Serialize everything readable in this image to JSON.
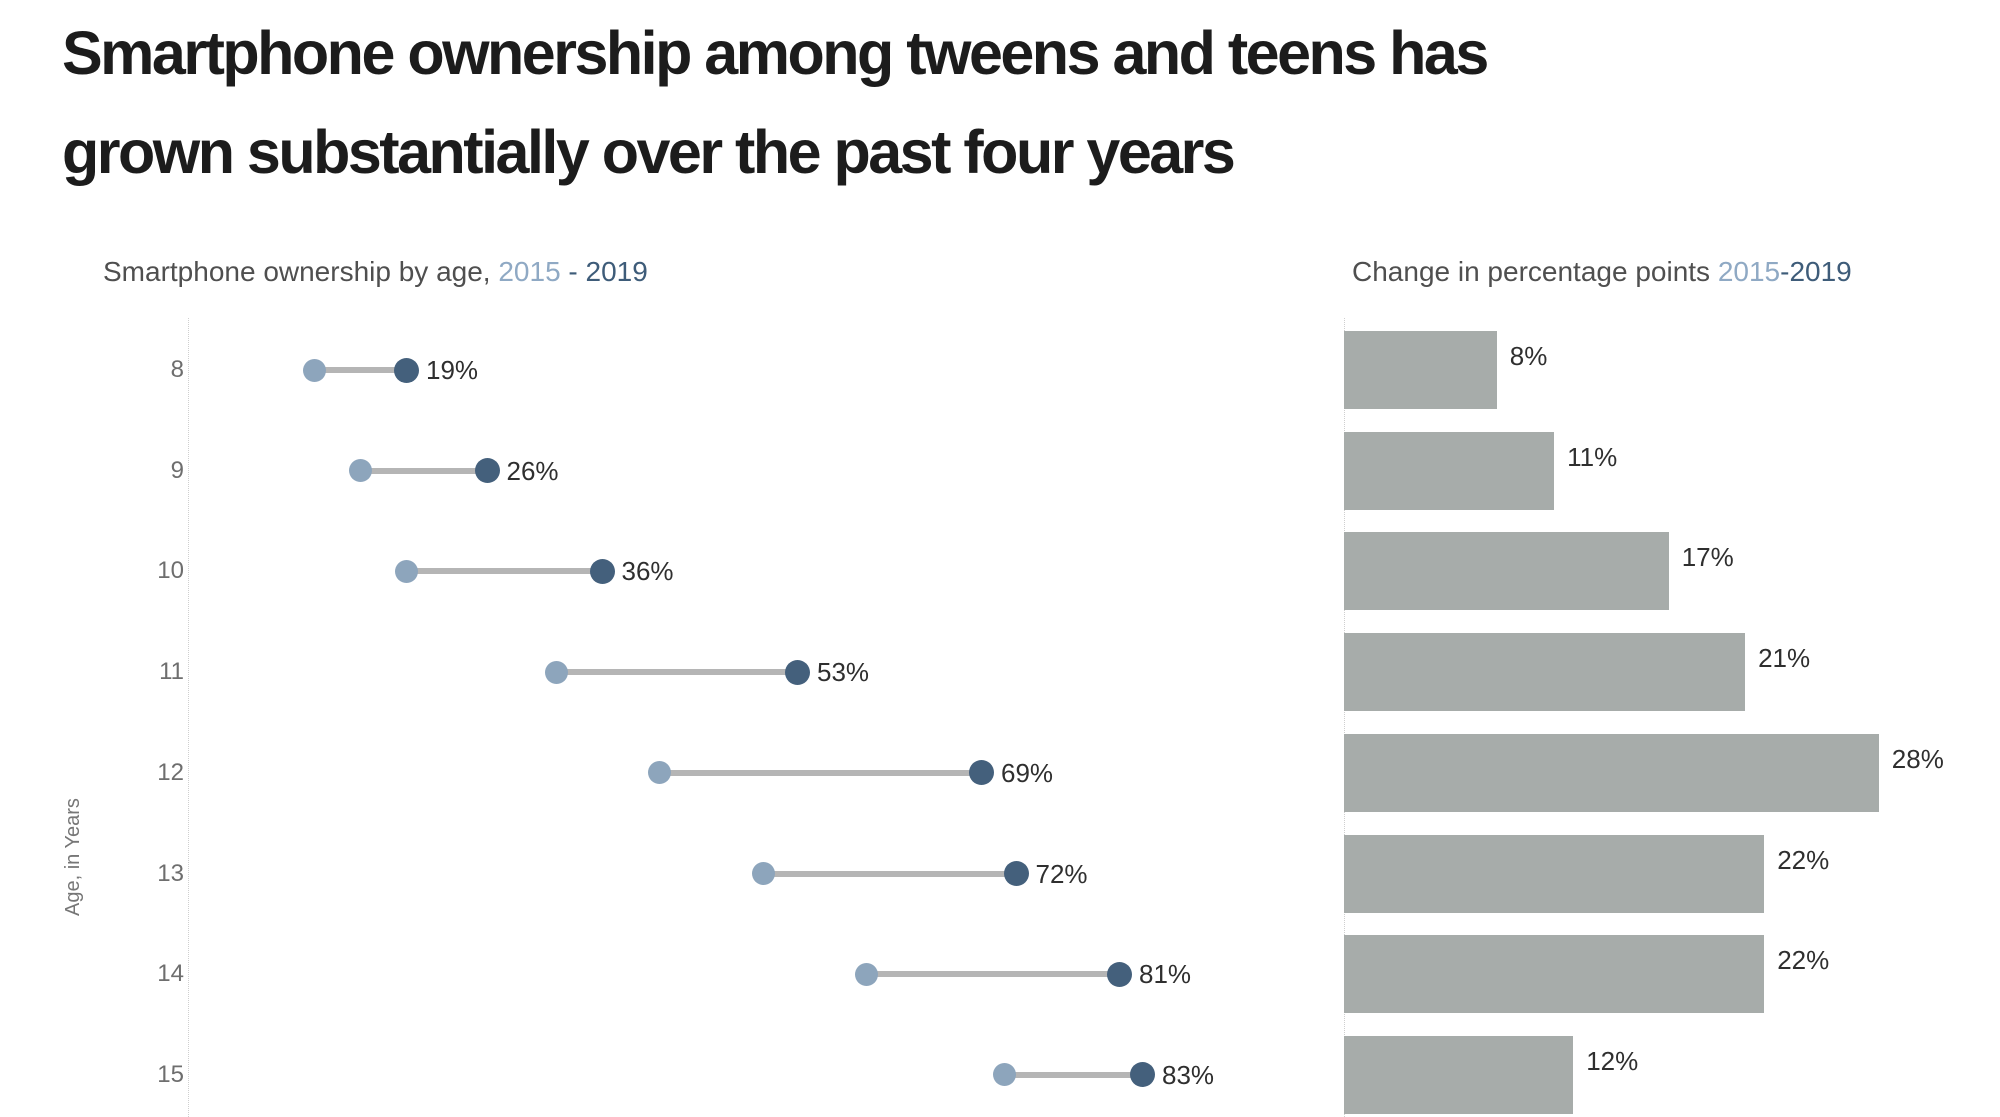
{
  "title": {
    "line1": "Smartphone ownership among tweens and teens has",
    "line2": "grown substantially over the past four years"
  },
  "left_chart": {
    "subtitle_prefix": "Smartphone ownership by age, ",
    "subtitle_year_start": "2015",
    "subtitle_year_rest": " - 2019",
    "y_axis_label": "Age, in Years"
  },
  "right_chart": {
    "subtitle_prefix": "Change in percentage points ",
    "subtitle_year_start": "2015",
    "subtitle_year_rest": "-2019"
  },
  "colors": {
    "year2015_blue": "#8DA5BC",
    "year2019_blue": "#44607C",
    "connector_gray": "#B5B5B5",
    "bar_gray": "#A7ACAA",
    "subtitle_2015_text": "#8FA9C4",
    "subtitle_2019_text": "#3E5C79"
  },
  "chart_data": [
    {
      "type": "scatter",
      "subtype": "dumbbell",
      "title": "Smartphone ownership by age, 2015 - 2019",
      "xlabel": "",
      "ylabel": "Age, in Years",
      "categories": [
        "8",
        "9",
        "10",
        "11",
        "12",
        "13",
        "14",
        "15"
      ],
      "series": [
        {
          "name": "2015",
          "values": [
            11,
            15,
            19,
            32,
            41,
            50,
            59,
            71
          ]
        },
        {
          "name": "2019",
          "values": [
            19,
            26,
            36,
            53,
            69,
            72,
            81,
            83
          ]
        }
      ],
      "labels": [
        "19%",
        "26%",
        "36%",
        "53%",
        "69%",
        "72%",
        "81%",
        "83%"
      ],
      "xlim": [
        0,
        100
      ],
      "grid": false,
      "legend": "none",
      "orientation": "horizontal"
    },
    {
      "type": "bar",
      "title": "Change in percentage points 2015-2019",
      "xlabel": "",
      "ylabel": "",
      "categories": [
        "8",
        "9",
        "10",
        "11",
        "12",
        "13",
        "14",
        "15"
      ],
      "values": [
        8,
        11,
        17,
        21,
        28,
        22,
        22,
        12
      ],
      "labels": [
        "8%",
        "11%",
        "17%",
        "21%",
        "28%",
        "22%",
        "22%",
        "12%"
      ],
      "xlim": [
        0,
        31
      ],
      "grid": false,
      "legend": "none",
      "orientation": "horizontal"
    }
  ]
}
